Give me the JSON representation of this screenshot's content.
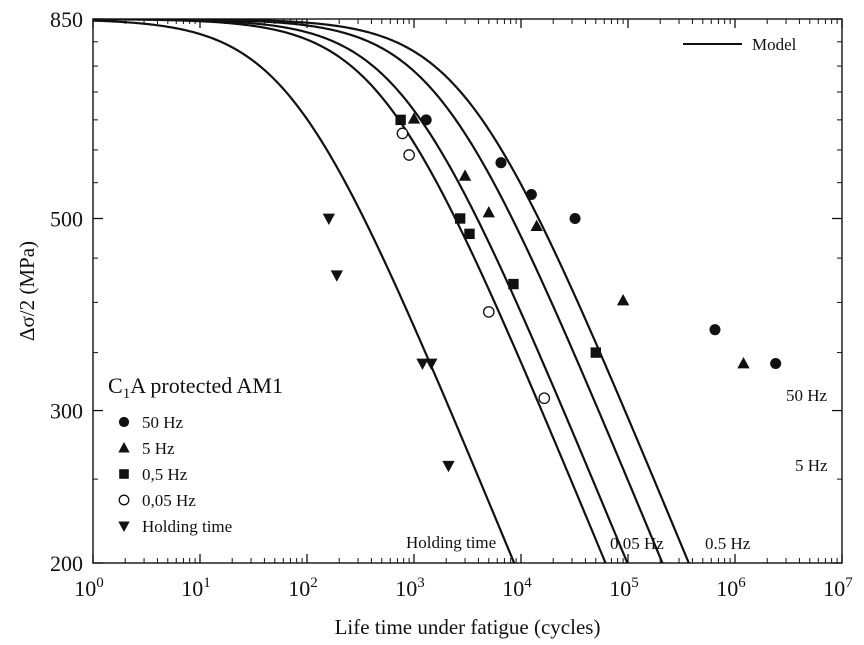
{
  "chart_data": {
    "type": "scatter",
    "xlabel": "Life time under fatigue (cycles)",
    "ylabel": "Δσ/2 (MPa)",
    "xscale": "log",
    "yscale": "log",
    "xlim": [
      1,
      10000000
    ],
    "ylim": [
      200,
      850
    ],
    "x_ticks": [
      {
        "value": 1,
        "base": "10",
        "exp": "0"
      },
      {
        "value": 10,
        "base": "10",
        "exp": "1"
      },
      {
        "value": 100,
        "base": "10",
        "exp": "2"
      },
      {
        "value": 1000,
        "base": "10",
        "exp": "3"
      },
      {
        "value": 10000,
        "base": "10",
        "exp": "4"
      },
      {
        "value": 100000,
        "base": "10",
        "exp": "5"
      },
      {
        "value": 1000000,
        "base": "10",
        "exp": "6"
      },
      {
        "value": 10000000,
        "base": "10",
        "exp": "7"
      }
    ],
    "y_ticks": [
      {
        "value": 200,
        "label": "200"
      },
      {
        "value": 300,
        "label": "300"
      },
      {
        "value": 500,
        "label": "500"
      },
      {
        "value": 850,
        "label": "850"
      }
    ],
    "legend_title": {
      "main": "C",
      "sub": "1",
      "rest": "A protected AM1"
    },
    "legend_position": "lower-left",
    "model_legend": {
      "label": "Model",
      "position": "top-right"
    },
    "series": [
      {
        "name": "50 Hz",
        "marker": "circle-filled",
        "points": [
          [
            1300,
            650
          ],
          [
            6500,
            580
          ],
          [
            12500,
            533
          ],
          [
            32000,
            500
          ],
          [
            650000,
            372
          ],
          [
            2400000,
            340
          ]
        ]
      },
      {
        "name": "5 Hz",
        "marker": "triangle-up",
        "points": [
          [
            1000,
            652
          ],
          [
            3000,
            560
          ],
          [
            5000,
            508
          ],
          [
            14000,
            490
          ],
          [
            90000,
            402
          ],
          [
            1200000,
            340
          ]
        ]
      },
      {
        "name": "0,5 Hz",
        "marker": "square",
        "points": [
          [
            750,
            650
          ],
          [
            2700,
            500
          ],
          [
            3300,
            480
          ],
          [
            8500,
            420
          ],
          [
            50000,
            350
          ]
        ]
      },
      {
        "name": "0,05 Hz",
        "marker": "circle-open",
        "points": [
          [
            780,
            627
          ],
          [
            900,
            592
          ],
          [
            5000,
            390
          ],
          [
            16500,
            310
          ]
        ]
      },
      {
        "name": "Holding time",
        "marker": "triangle-down",
        "points": [
          [
            160,
            500
          ],
          [
            190,
            430
          ],
          [
            1200,
            340
          ],
          [
            1450,
            340
          ],
          [
            2100,
            259
          ]
        ]
      }
    ],
    "curves": [
      {
        "label": "50 Hz",
        "x_fatigue": 3000
      },
      {
        "label": "5 Hz",
        "x_fatigue": 1700
      },
      {
        "label": "0.5 Hz",
        "x_fatigue": 800
      },
      {
        "label": "0.05 Hz",
        "x_fatigue": 500
      },
      {
        "label": "Holding time",
        "x_fatigue": 70
      }
    ],
    "model_params": {
      "ymax": 850,
      "ymin": 0,
      "k": 0.3
    }
  }
}
